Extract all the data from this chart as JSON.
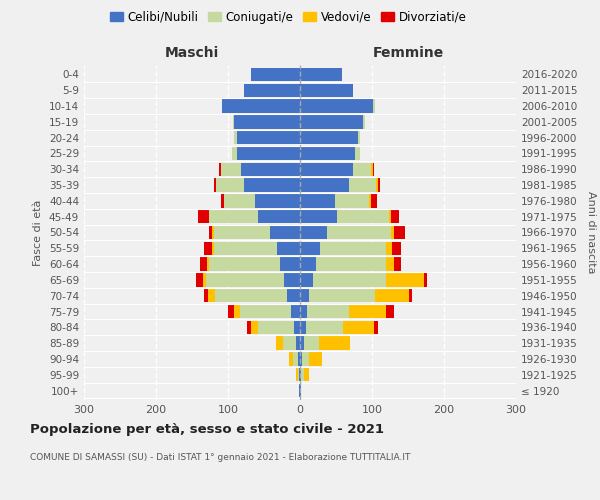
{
  "age_groups": [
    "100+",
    "95-99",
    "90-94",
    "85-89",
    "80-84",
    "75-79",
    "70-74",
    "65-69",
    "60-64",
    "55-59",
    "50-54",
    "45-49",
    "40-44",
    "35-39",
    "30-34",
    "25-29",
    "20-24",
    "15-19",
    "10-14",
    "5-9",
    "0-4"
  ],
  "birth_years": [
    "≤ 1920",
    "1921-1925",
    "1926-1930",
    "1931-1935",
    "1936-1940",
    "1941-1945",
    "1946-1950",
    "1951-1955",
    "1956-1960",
    "1961-1965",
    "1966-1970",
    "1971-1975",
    "1976-1980",
    "1981-1985",
    "1986-1990",
    "1991-1995",
    "1996-2000",
    "2001-2005",
    "2006-2010",
    "2011-2015",
    "2016-2020"
  ],
  "male_celibi": [
    1,
    1,
    3,
    5,
    8,
    12,
    18,
    22,
    28,
    32,
    42,
    58,
    62,
    78,
    82,
    88,
    88,
    92,
    108,
    78,
    68
  ],
  "male_coniugati": [
    0,
    2,
    7,
    18,
    50,
    72,
    100,
    108,
    98,
    88,
    78,
    68,
    43,
    38,
    28,
    7,
    3,
    1,
    1,
    0,
    0
  ],
  "male_vedovi": [
    0,
    3,
    5,
    10,
    10,
    8,
    10,
    5,
    3,
    2,
    2,
    0,
    0,
    0,
    0,
    0,
    0,
    0,
    0,
    0,
    0
  ],
  "male_divorziati": [
    0,
    0,
    0,
    0,
    5,
    8,
    5,
    10,
    10,
    12,
    5,
    15,
    5,
    3,
    2,
    0,
    0,
    0,
    0,
    0,
    0
  ],
  "female_nubili": [
    1,
    2,
    3,
    5,
    8,
    10,
    12,
    18,
    22,
    28,
    38,
    52,
    48,
    68,
    73,
    76,
    80,
    88,
    102,
    73,
    58
  ],
  "female_coniugate": [
    0,
    3,
    10,
    22,
    52,
    58,
    92,
    102,
    98,
    92,
    88,
    72,
    48,
    38,
    26,
    8,
    4,
    2,
    2,
    0,
    0
  ],
  "female_vedove": [
    1,
    8,
    18,
    42,
    43,
    52,
    48,
    52,
    10,
    8,
    5,
    3,
    3,
    2,
    2,
    0,
    0,
    0,
    0,
    0,
    0
  ],
  "female_divorziate": [
    0,
    0,
    0,
    0,
    5,
    10,
    3,
    5,
    10,
    12,
    15,
    10,
    8,
    3,
    2,
    0,
    0,
    0,
    0,
    0,
    0
  ],
  "colors": {
    "celibi": "#4472c4",
    "coniugati": "#c5d9a0",
    "vedovi": "#ffc000",
    "divorziati": "#e00000"
  },
  "xlim": 300,
  "title": "Popolazione per età, sesso e stato civile - 2021",
  "subtitle": "COMUNE DI SAMASSI (SU) - Dati ISTAT 1° gennaio 2021 - Elaborazione TUTTITALIA.IT",
  "xlabel_left": "Maschi",
  "xlabel_right": "Femmine",
  "ylabel_left": "Fasce di età",
  "ylabel_right": "Anni di nascita",
  "legend_labels": [
    "Celibi/Nubili",
    "Coniugati/e",
    "Vedovi/e",
    "Divorziati/e"
  ],
  "bg_color": "#f0f0f0"
}
